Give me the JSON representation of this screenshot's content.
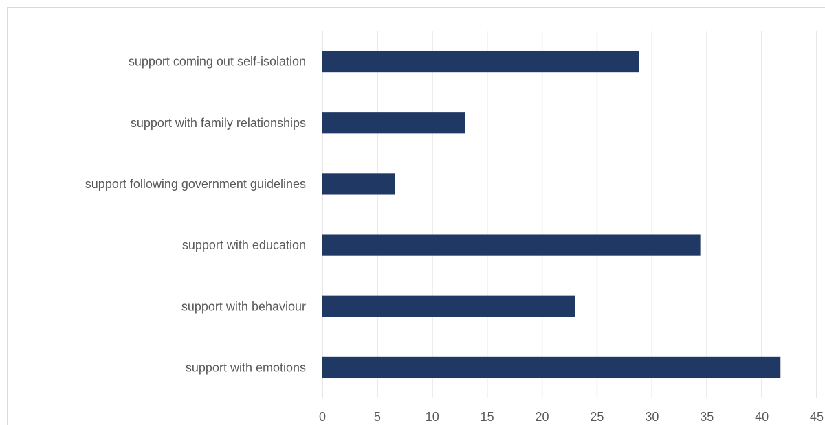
{
  "chart_data": {
    "type": "bar",
    "orientation": "horizontal",
    "categories": [
      "support coming out self-isolation",
      "support with  family relationships",
      "support following government guidelines",
      "support with education",
      "support with behaviour",
      "support with emotions"
    ],
    "values": [
      28.8,
      13.0,
      6.6,
      34.4,
      23.0,
      41.7
    ],
    "xlim": [
      0,
      45
    ],
    "xticks": [
      "0",
      "5",
      "10",
      "15",
      "20",
      "25",
      "30",
      "35",
      "40",
      "45"
    ],
    "grid": true,
    "legend": "none",
    "title": "",
    "xlabel": "",
    "ylabel": "",
    "colors": {
      "bar": "#1f3864",
      "grid": "#d9d9d9",
      "text": "#595959"
    }
  }
}
